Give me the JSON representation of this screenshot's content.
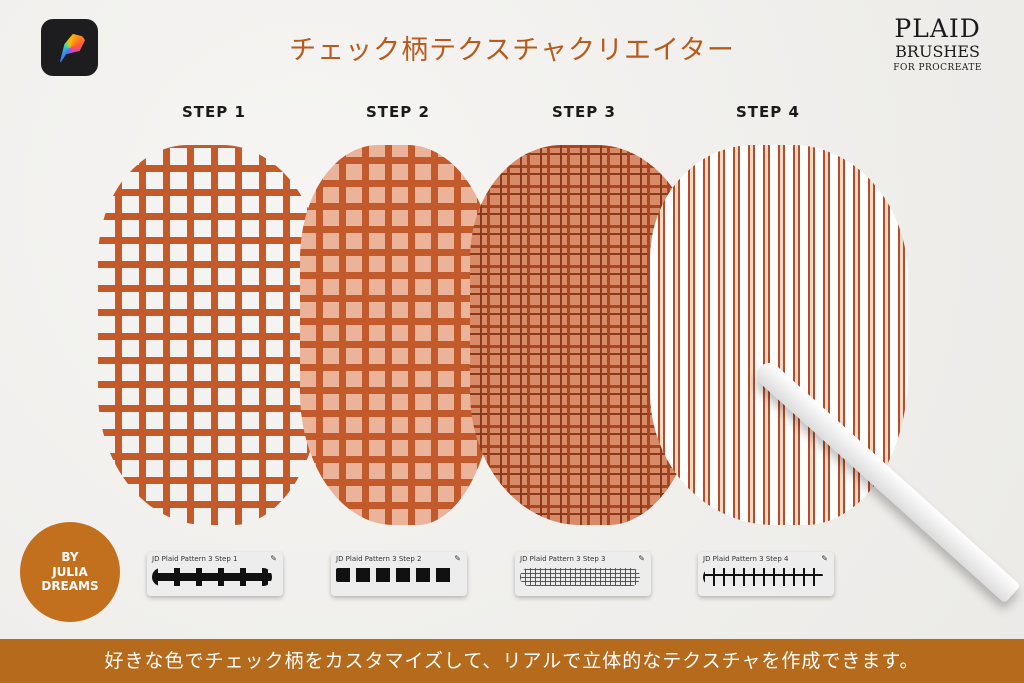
{
  "title": "チェック柄テクスチャクリエイター",
  "brand": {
    "line1": "PLAID",
    "line2": "BRUSHES",
    "line3": "FOR PROCREATE"
  },
  "steps": [
    "STEP 1",
    "STEP 2",
    "STEP 3",
    "STEP 4"
  ],
  "seal": {
    "line1": "BY",
    "line2": "JULIA",
    "line3": "DREAMS"
  },
  "brush_cards": [
    "JD Plaid Pattern 3 Step 1",
    "JD Plaid Pattern 3 Step 2",
    "JD Plaid Pattern 3 Step 3",
    "JD Plaid Pattern 3 Step 4"
  ],
  "footer": "好きな色でチェック柄をカスタマイズして、リアルで立体的なテクスチャを作成できます。",
  "colors": {
    "accent": "#b66a1c",
    "plaid": "#c4592a"
  }
}
